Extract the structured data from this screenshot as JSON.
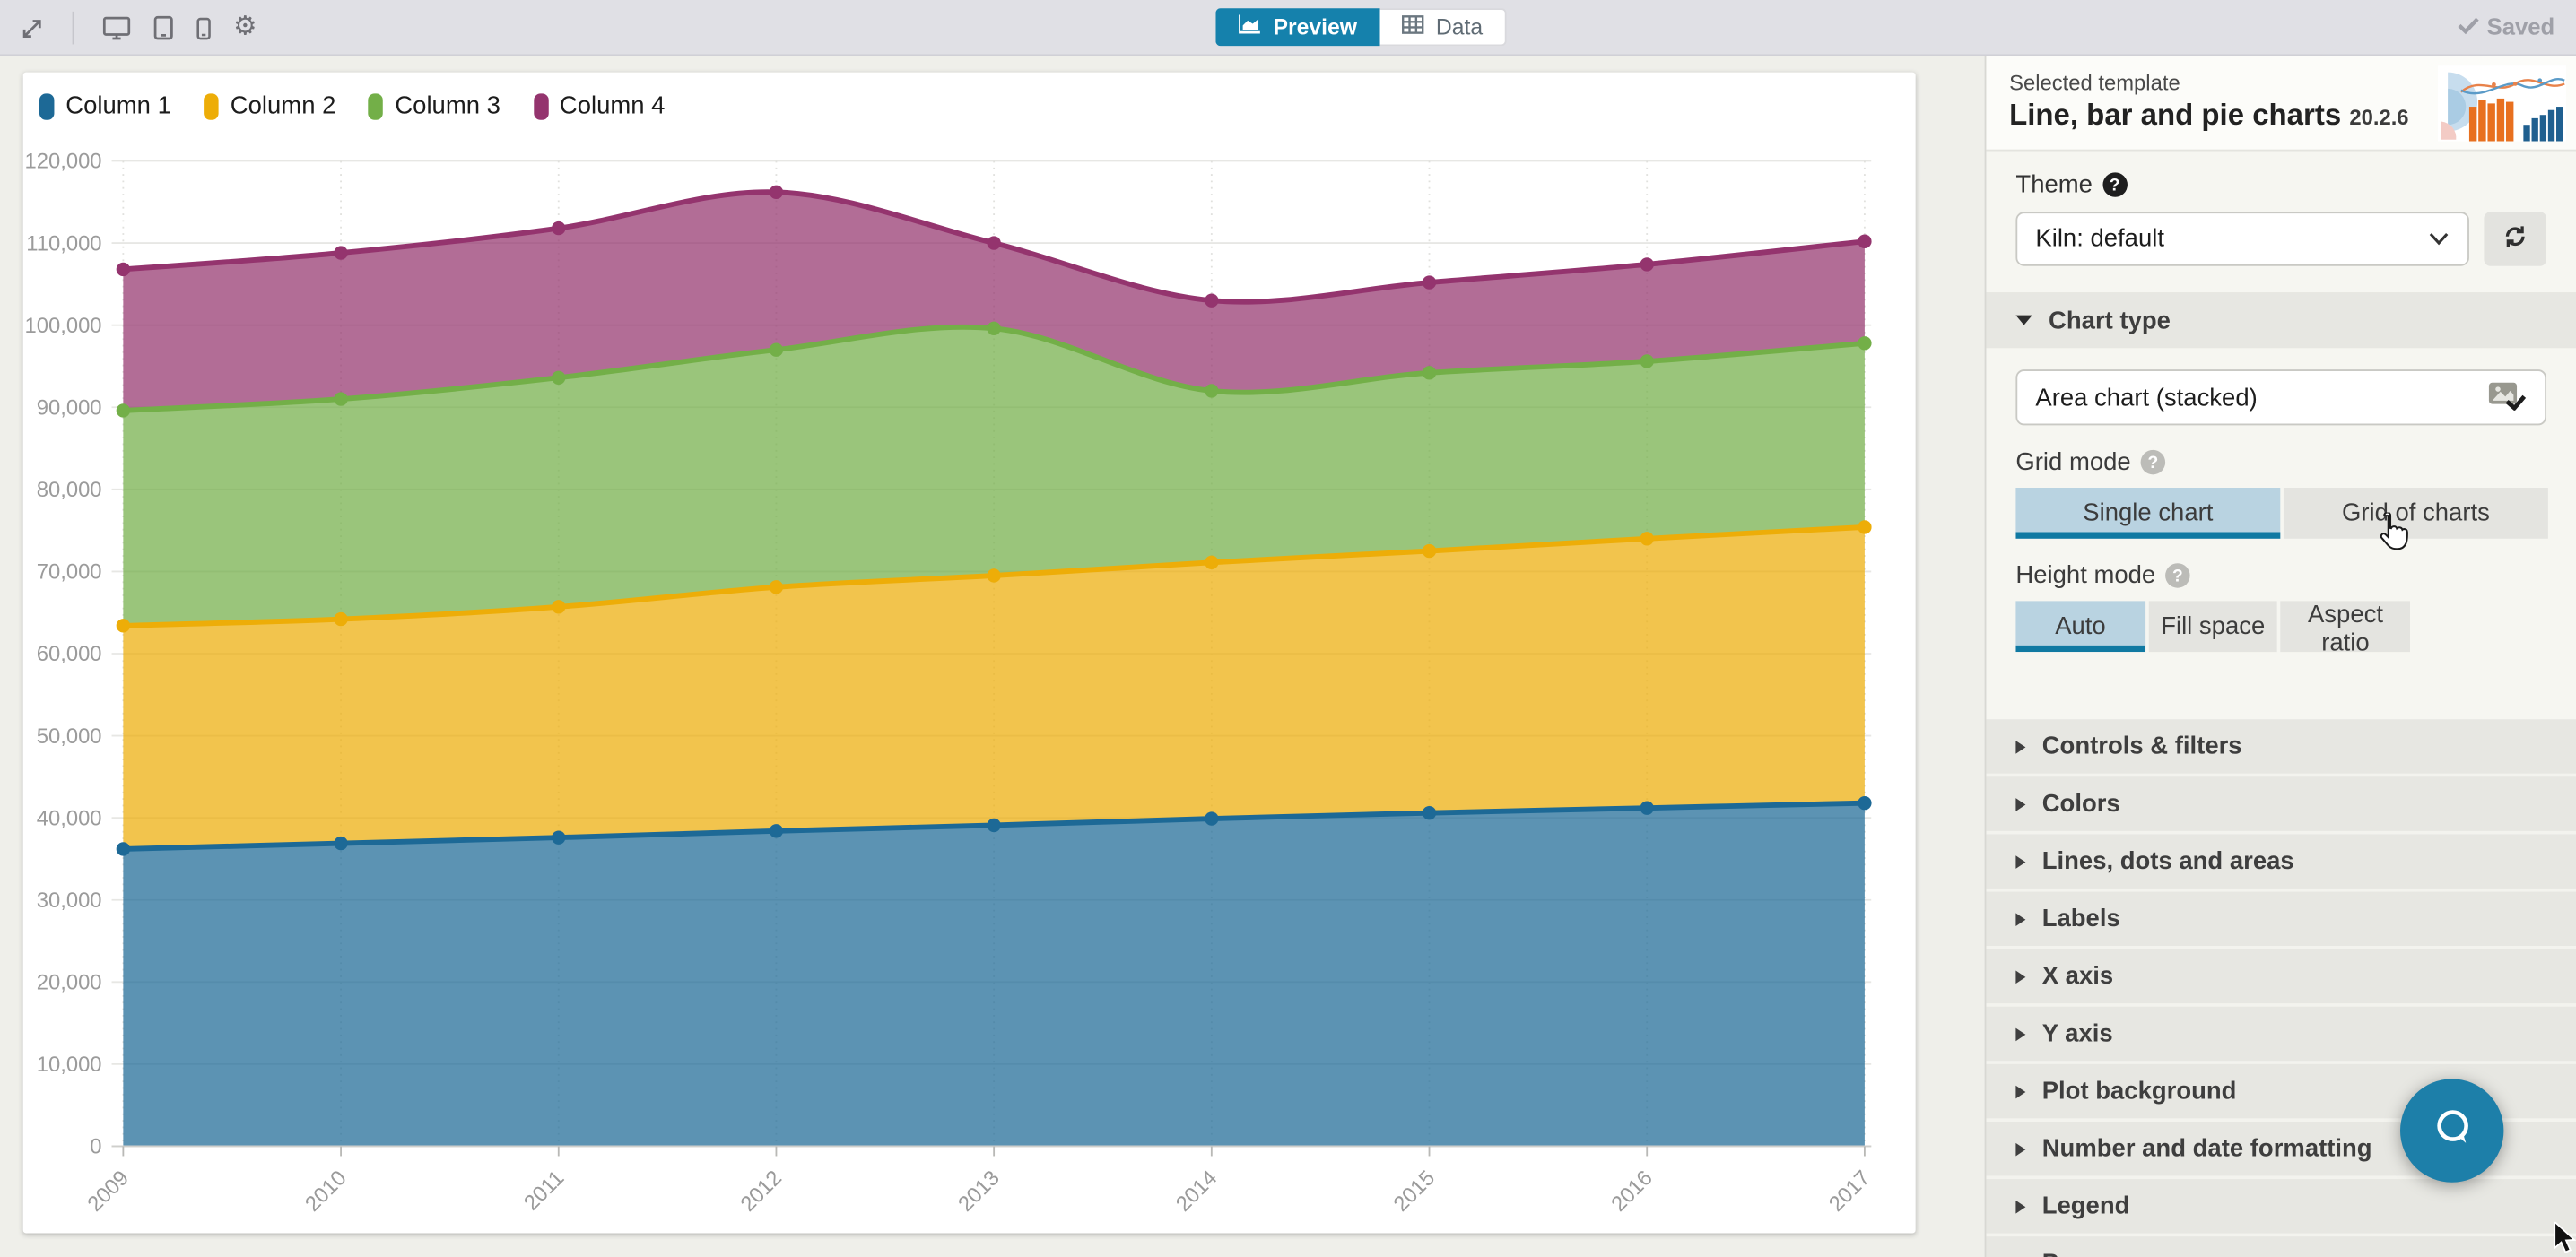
{
  "toolbar": {
    "saved_label": "Saved",
    "tabs": [
      {
        "label": "Preview",
        "active": true
      },
      {
        "label": "Data",
        "active": false
      }
    ],
    "device_icons": [
      "fullscreen-icon",
      "desktop-icon",
      "tablet-icon",
      "mobile-icon",
      "settings-gear-icon"
    ]
  },
  "sidebar": {
    "selected_template_label": "Selected template",
    "template_name": "Line, bar and pie charts",
    "template_version": "20.2.6",
    "theme_label": "Theme",
    "theme_value": "Kiln: default",
    "chart_type_section_label": "Chart type",
    "chart_type_value": "Area chart (stacked)",
    "grid_mode": {
      "label": "Grid mode",
      "options": [
        "Single chart",
        "Grid of charts"
      ],
      "selected": "Single chart"
    },
    "height_mode": {
      "label": "Height mode",
      "options": [
        "Auto",
        "Fill space",
        "Aspect ratio"
      ],
      "selected": "Auto"
    },
    "sections": [
      "Controls & filters",
      "Colors",
      "Lines, dots and areas",
      "Labels",
      "X axis",
      "Y axis",
      "Plot background",
      "Number and date formatting",
      "Legend",
      "Popups"
    ]
  },
  "chart_data": {
    "type": "area",
    "stacked": true,
    "x": [
      2009,
      2010,
      2011,
      2012,
      2013,
      2014,
      2015,
      2016,
      2017
    ],
    "series": [
      {
        "name": "Column 1",
        "color": "#1D6996",
        "values": [
          36200,
          36900,
          37600,
          38400,
          39100,
          39900,
          40600,
          41200,
          41800
        ]
      },
      {
        "name": "Column 2",
        "color": "#EDAD08",
        "values": [
          27200,
          27300,
          28100,
          29700,
          30400,
          31200,
          31900,
          32800,
          33600
        ]
      },
      {
        "name": "Column 3",
        "color": "#73AF48",
        "values": [
          26200,
          26800,
          27900,
          28900,
          30100,
          20900,
          21700,
          21600,
          22400
        ]
      },
      {
        "name": "Column 4",
        "color": "#94346E",
        "values": [
          17200,
          17800,
          18200,
          19200,
          10400,
          11000,
          11000,
          11800,
          12400
        ]
      }
    ],
    "ylim": [
      0,
      120000
    ],
    "ytick_step": 10000,
    "xlabel": "",
    "ylabel": "",
    "grid": true,
    "legend_position": "top-left",
    "fill_opacity": 0.72
  },
  "accent_colors": {
    "preview_tab_blue": "#1581AC",
    "selected_segment_bg": "#B9D3E1",
    "selected_segment_underline": "#1079A2",
    "chat_button_blue": "#1D7FA9"
  }
}
